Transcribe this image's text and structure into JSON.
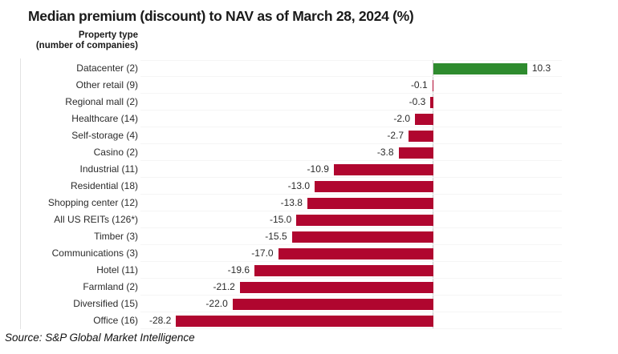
{
  "title": "Median premium (discount) to NAV as of March 28, 2024 (%)",
  "axis_header": {
    "line1": "Property type",
    "line2": "(number of companies)"
  },
  "source": "Source: S&P Global Market Intelligence",
  "colors": {
    "positive_bar": "#2e8b2e",
    "negative_bar": "#b0062f",
    "zero_line": "#c8c8c8",
    "gridline": "#f5f5f5",
    "text": "#2b2b2b"
  },
  "chart_data": {
    "type": "bar",
    "orientation": "horizontal",
    "title": "Median premium (discount) to NAV as of March 28, 2024 (%)",
    "xlabel": "",
    "ylabel": "Property type (number of companies)",
    "categories": [
      "Datacenter (2)",
      "Other retail (9)",
      "Regional mall (2)",
      "Healthcare (14)",
      "Self-storage (4)",
      "Casino (2)",
      "Industrial (11)",
      "Residential (18)",
      "Shopping center (12)",
      "All US REITs (126*)",
      "Timber (3)",
      "Communications (3)",
      "Hotel (11)",
      "Farmland (2)",
      "Diversified (15)",
      "Office (16)"
    ],
    "values": [
      10.3,
      -0.1,
      -0.3,
      -2.0,
      -2.7,
      -3.8,
      -10.9,
      -13.0,
      -13.8,
      -15.0,
      -15.5,
      -17.0,
      -19.6,
      -21.2,
      -22.0,
      -28.2
    ],
    "xlim": [
      -32.1,
      14.1
    ],
    "grid": "row-separators",
    "legend": "none",
    "value_labels": "at bar ends, one decimal"
  }
}
